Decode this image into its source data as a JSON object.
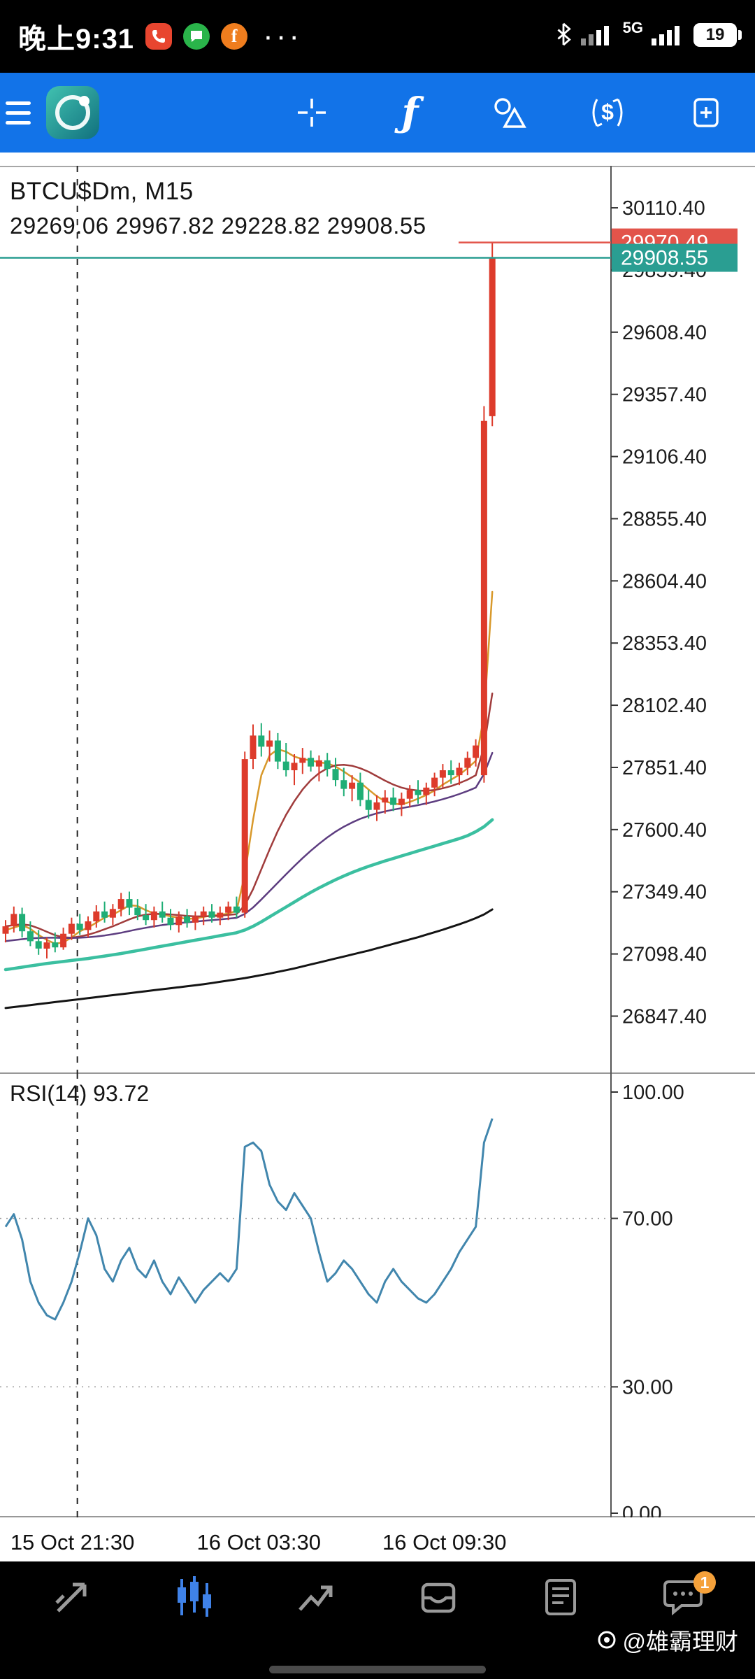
{
  "status_bar": {
    "time": "晚上9:31",
    "more": "···",
    "network": "5G",
    "battery": "19"
  },
  "toolbar": {
    "indicators_glyph": "ƒ"
  },
  "chart": {
    "symbol": "BTCU$Dm, M15",
    "ohlc": "29269.06 29967.82 29228.82 29908.55",
    "rsi_label": "RSI(14) 93.72"
  },
  "colors": {
    "accent_blue": "#1273e8",
    "nav_active_blue": "#3f82e8",
    "bull": "#dd3b2b",
    "bear": "#1fae76",
    "bid": "#2a9e92",
    "ask": "#e2544a",
    "rsi_line": "#4186ad"
  },
  "bottom_nav": {
    "chat_badge": "1",
    "watermark": "@雄霸理财"
  },
  "chart_data": {
    "type": "candlestick",
    "title": "BTCU$Dm, M15",
    "ohlc_header": [
      29269.06,
      29967.82,
      29228.82,
      29908.55
    ],
    "price_axis_ticks": [
      30110.4,
      29859.4,
      29608.4,
      29357.4,
      29106.4,
      28855.4,
      28604.4,
      28353.4,
      28102.4,
      27851.4,
      27600.4,
      27349.4,
      27098.4,
      26847.4
    ],
    "price_range": [
      26620,
      30280
    ],
    "bid": 29908.55,
    "ask": 29970.49,
    "separator_index": 8.7,
    "candles": [
      [
        27180,
        27235,
        27145,
        27210
      ],
      [
        27210,
        27290,
        27185,
        27260
      ],
      [
        27260,
        27285,
        27165,
        27190
      ],
      [
        27190,
        27230,
        27130,
        27150
      ],
      [
        27150,
        27195,
        27095,
        27120
      ],
      [
        27120,
        27165,
        27080,
        27145
      ],
      [
        27145,
        27185,
        27105,
        27125
      ],
      [
        27125,
        27205,
        27115,
        27180
      ],
      [
        27180,
        27245,
        27155,
        27220
      ],
      [
        27220,
        27260,
        27175,
        27195
      ],
      [
        27195,
        27250,
        27165,
        27230
      ],
      [
        27230,
        27295,
        27205,
        27270
      ],
      [
        27270,
        27310,
        27225,
        27245
      ],
      [
        27245,
        27300,
        27215,
        27280
      ],
      [
        27280,
        27345,
        27250,
        27320
      ],
      [
        27320,
        27350,
        27255,
        27285
      ],
      [
        27285,
        27320,
        27235,
        27255
      ],
      [
        27255,
        27300,
        27215,
        27235
      ],
      [
        27235,
        27290,
        27205,
        27270
      ],
      [
        27270,
        27310,
        27225,
        27245
      ],
      [
        27245,
        27280,
        27195,
        27215
      ],
      [
        27215,
        27270,
        27185,
        27250
      ],
      [
        27250,
        27280,
        27205,
        27225
      ],
      [
        27225,
        27270,
        27195,
        27250
      ],
      [
        27250,
        27290,
        27215,
        27270
      ],
      [
        27270,
        27300,
        27225,
        27245
      ],
      [
        27245,
        27290,
        27215,
        27265
      ],
      [
        27265,
        27310,
        27235,
        27290
      ],
      [
        27290,
        27330,
        27245,
        27265
      ],
      [
        27265,
        27915,
        27245,
        27885
      ],
      [
        27885,
        28025,
        27845,
        27980
      ],
      [
        27980,
        28030,
        27895,
        27935
      ],
      [
        27935,
        28000,
        27875,
        27960
      ],
      [
        27960,
        27990,
        27845,
        27875
      ],
      [
        27875,
        27950,
        27815,
        27840
      ],
      [
        27840,
        27905,
        27780,
        27870
      ],
      [
        27870,
        27930,
        27825,
        27890
      ],
      [
        27890,
        27920,
        27835,
        27855
      ],
      [
        27855,
        27900,
        27795,
        27880
      ],
      [
        27880,
        27910,
        27815,
        27845
      ],
      [
        27845,
        27890,
        27775,
        27800
      ],
      [
        27800,
        27850,
        27735,
        27765
      ],
      [
        27765,
        27820,
        27715,
        27790
      ],
      [
        27790,
        27830,
        27695,
        27720
      ],
      [
        27720,
        27760,
        27645,
        27680
      ],
      [
        27680,
        27740,
        27635,
        27710
      ],
      [
        27710,
        27760,
        27665,
        27730
      ],
      [
        27730,
        27770,
        27675,
        27700
      ],
      [
        27700,
        27750,
        27655,
        27725
      ],
      [
        27725,
        27780,
        27690,
        27760
      ],
      [
        27760,
        27800,
        27705,
        27740
      ],
      [
        27740,
        27790,
        27700,
        27770
      ],
      [
        27770,
        27830,
        27735,
        27810
      ],
      [
        27810,
        27865,
        27770,
        27840
      ],
      [
        27840,
        27880,
        27785,
        27820
      ],
      [
        27820,
        27870,
        27780,
        27850
      ],
      [
        27850,
        27915,
        27820,
        27890
      ],
      [
        27890,
        27965,
        27855,
        27940
      ],
      [
        27820,
        29310,
        27790,
        29250
      ],
      [
        29269.06,
        29967.82,
        29228.82,
        29908.55
      ]
    ],
    "ma_series": [
      {
        "name": "ma-fast-orange",
        "color": "#d8992b",
        "width": 2.5,
        "values": [
          27195,
          27205,
          27215,
          27200,
          27175,
          27155,
          27140,
          27145,
          27165,
          27190,
          27205,
          27225,
          27245,
          27258,
          27275,
          27295,
          27292,
          27275,
          27262,
          27258,
          27250,
          27245,
          27240,
          27242,
          27248,
          27254,
          27256,
          27262,
          27272,
          27420,
          27640,
          27820,
          27900,
          27925,
          27915,
          27895,
          27885,
          27880,
          27872,
          27868,
          27855,
          27835,
          27812,
          27790,
          27762,
          27735,
          27715,
          27705,
          27702,
          27712,
          27725,
          27740,
          27758,
          27782,
          27802,
          27822,
          27848,
          27878,
          28060,
          28560
        ]
      },
      {
        "name": "ma-mid-crimson",
        "color": "#a03c3c",
        "width": 2.5,
        "values": [
          27210,
          27215,
          27218,
          27214,
          27202,
          27188,
          27174,
          27166,
          27164,
          27169,
          27176,
          27186,
          27198,
          27210,
          27224,
          27238,
          27250,
          27257,
          27260,
          27260,
          27258,
          27255,
          27252,
          27250,
          27250,
          27251,
          27253,
          27256,
          27259,
          27295,
          27360,
          27440,
          27520,
          27595,
          27660,
          27715,
          27762,
          27800,
          27828,
          27848,
          27860,
          27862,
          27858,
          27848,
          27834,
          27816,
          27798,
          27782,
          27770,
          27762,
          27758,
          27757,
          27760,
          27767,
          27776,
          27788,
          27802,
          27820,
          27935,
          28150
        ]
      },
      {
        "name": "ma-slow-purple",
        "color": "#5d3d80",
        "width": 2.5,
        "values": [
          27150,
          27154,
          27158,
          27161,
          27163,
          27164,
          27164,
          27163,
          27163,
          27164,
          27166,
          27169,
          27173,
          27178,
          27184,
          27191,
          27198,
          27204,
          27210,
          27215,
          27219,
          27223,
          27226,
          27229,
          27232,
          27235,
          27238,
          27241,
          27244,
          27260,
          27286,
          27318,
          27352,
          27386,
          27420,
          27453,
          27485,
          27515,
          27543,
          27569,
          27592,
          27612,
          27629,
          27644,
          27656,
          27666,
          27674,
          27681,
          27687,
          27693,
          27699,
          27706,
          27714,
          27723,
          27733,
          27744,
          27756,
          27770,
          27825,
          27910
        ]
      },
      {
        "name": "ma-long-teal",
        "color": "#3bbfa0",
        "width": 4.5,
        "values": [
          27035,
          27040,
          27045,
          27050,
          27055,
          27060,
          27064,
          27068,
          27072,
          27076,
          27080,
          27085,
          27090,
          27095,
          27100,
          27106,
          27112,
          27118,
          27124,
          27130,
          27136,
          27142,
          27148,
          27154,
          27160,
          27166,
          27172,
          27178,
          27184,
          27195,
          27210,
          27228,
          27248,
          27268,
          27288,
          27308,
          27328,
          27347,
          27365,
          27382,
          27398,
          27413,
          27427,
          27440,
          27452,
          27463,
          27474,
          27484,
          27494,
          27504,
          27514,
          27524,
          27534,
          27544,
          27554,
          27564,
          27576,
          27592,
          27612,
          27640
        ]
      },
      {
        "name": "ma-longest-black",
        "color": "#141414",
        "width": 3,
        "values": [
          26880,
          26884,
          26888,
          26892,
          26896,
          26900,
          26904,
          26908,
          26912,
          26916,
          26920,
          26924,
          26928,
          26932,
          26936,
          26940,
          26944,
          26948,
          26952,
          26956,
          26960,
          26964,
          26968,
          26972,
          26976,
          26981,
          26986,
          26991,
          26996,
          27001,
          27007,
          27013,
          27019,
          27026,
          27033,
          27040,
          27048,
          27056,
          27064,
          27072,
          27080,
          27088,
          27096,
          27104,
          27112,
          27121,
          27130,
          27139,
          27148,
          27157,
          27166,
          27176,
          27186,
          27196,
          27207,
          27218,
          27230,
          27243,
          27258,
          27278
        ]
      }
    ],
    "rsi": {
      "label": "RSI(14) 93.72",
      "color": "#4186ad",
      "range": [
        0,
        100
      ],
      "axis_ticks": [
        100.0,
        70.0,
        30.0,
        0.0
      ],
      "dotted_levels": [
        70,
        30
      ],
      "values": [
        68,
        71,
        65,
        55,
        50,
        47,
        46,
        50,
        55,
        62,
        70,
        66,
        58,
        55,
        60,
        63,
        58,
        56,
        60,
        55,
        52,
        56,
        53,
        50,
        53,
        55,
        57,
        55,
        58,
        87,
        88,
        86,
        78,
        74,
        72,
        76,
        73,
        70,
        62,
        55,
        57,
        60,
        58,
        55,
        52,
        50,
        55,
        58,
        55,
        53,
        51,
        50,
        52,
        55,
        58,
        62,
        65,
        68,
        88,
        93.72
      ]
    },
    "time_axis": {
      "labels": [
        "15 Oct 21:30",
        "16 Oct 03:30",
        "16 Oct 09:30"
      ],
      "indices": [
        8.1,
        30.7,
        53.2
      ]
    }
  }
}
